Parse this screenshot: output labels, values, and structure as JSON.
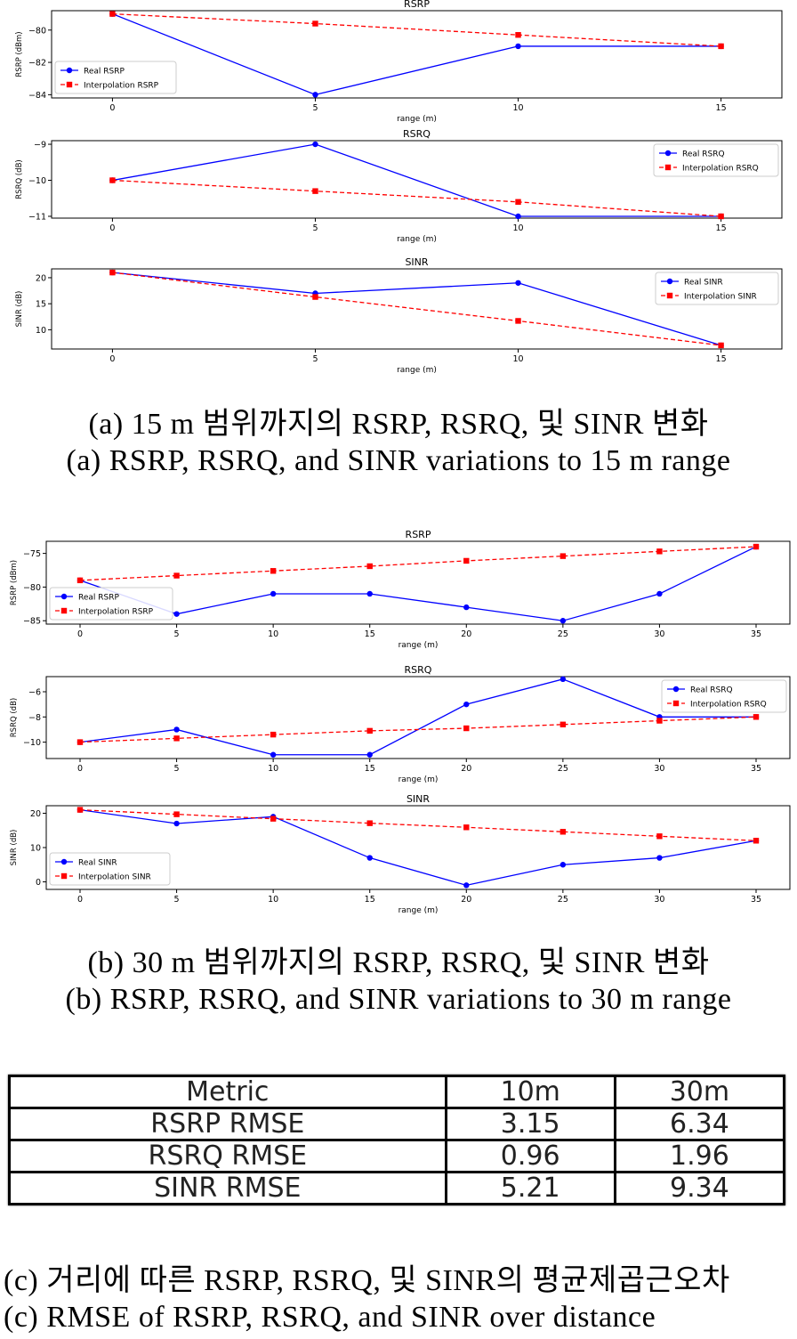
{
  "chart_data": [
    {
      "type": "line",
      "title": "RSRP",
      "xlabel": "range (m)",
      "ylabel": "RSRP (dBm)",
      "xlim": [
        -1.5,
        16.5
      ],
      "ylim": [
        -84.2,
        -78.8
      ],
      "xticks": [
        0,
        5,
        10,
        15
      ],
      "yticks": [
        -80,
        -82,
        -84
      ],
      "legend": "lower-left",
      "x": [
        0,
        5,
        10,
        15
      ],
      "series": [
        {
          "name": "Real RSRP",
          "color": "#0000ff",
          "style": "solid",
          "marker": "circle",
          "values": [
            -79,
            -84,
            -81,
            -81
          ]
        },
        {
          "name": "Interpolation RSRP",
          "color": "#ff0000",
          "style": "dashed",
          "marker": "square",
          "values": [
            -79,
            -79.6,
            -80.3,
            -81
          ]
        }
      ]
    },
    {
      "type": "line",
      "title": "RSRQ",
      "xlabel": "range (m)",
      "ylabel": "RSRQ (dB)",
      "xlim": [
        -1.5,
        16.5
      ],
      "ylim": [
        -11.05,
        -8.9
      ],
      "xticks": [
        0,
        5,
        10,
        15
      ],
      "yticks": [
        -9,
        -10,
        -11
      ],
      "legend": "upper-right",
      "x": [
        0,
        5,
        10,
        15
      ],
      "series": [
        {
          "name": "Real RSRQ",
          "color": "#0000ff",
          "style": "solid",
          "marker": "circle",
          "values": [
            -10,
            -9,
            -11,
            -11
          ]
        },
        {
          "name": "Interpolation RSRQ",
          "color": "#ff0000",
          "style": "dashed",
          "marker": "square",
          "values": [
            -10,
            -10.3,
            -10.6,
            -11
          ]
        }
      ]
    },
    {
      "type": "line",
      "title": "SINR",
      "xlabel": "range (m)",
      "ylabel": "SINR (dB)",
      "xlim": [
        -1.5,
        16.5
      ],
      "ylim": [
        6.3,
        21.7
      ],
      "xticks": [
        0,
        5,
        10,
        15
      ],
      "yticks": [
        20,
        15,
        10
      ],
      "legend": "upper-right",
      "x": [
        0,
        5,
        10,
        15
      ],
      "series": [
        {
          "name": "Real SINR",
          "color": "#0000ff",
          "style": "solid",
          "marker": "circle",
          "values": [
            21,
            17,
            19,
            7
          ]
        },
        {
          "name": "Interpolation SINR",
          "color": "#ff0000",
          "style": "dashed",
          "marker": "square",
          "values": [
            21,
            16.3,
            11.7,
            7
          ]
        }
      ]
    },
    {
      "type": "line",
      "title": "RSRP",
      "xlabel": "range (m)",
      "ylabel": "RSRP (dBm)",
      "xlim": [
        -1.75,
        36.75
      ],
      "ylim": [
        -85.5,
        -73.2
      ],
      "xticks": [
        0,
        5,
        10,
        15,
        20,
        25,
        30,
        35
      ],
      "yticks": [
        -75,
        -80,
        -85
      ],
      "legend": "lower-left",
      "x": [
        0,
        5,
        10,
        15,
        20,
        25,
        30,
        35
      ],
      "series": [
        {
          "name": "Real RSRP",
          "color": "#0000ff",
          "style": "solid",
          "marker": "circle",
          "values": [
            -79,
            -84,
            -81,
            -81,
            -83,
            -85,
            -81,
            -74
          ]
        },
        {
          "name": "Interpolation RSRP",
          "color": "#ff0000",
          "style": "dashed",
          "marker": "square",
          "values": [
            -79,
            -78.3,
            -77.6,
            -76.9,
            -76.1,
            -75.4,
            -74.7,
            -74
          ]
        }
      ]
    },
    {
      "type": "line",
      "title": "RSRQ",
      "xlabel": "range (m)",
      "ylabel": "RSRQ (dB)",
      "xlim": [
        -1.75,
        36.75
      ],
      "ylim": [
        -11.3,
        -4.8
      ],
      "xticks": [
        0,
        5,
        10,
        15,
        20,
        25,
        30,
        35
      ],
      "yticks": [
        -6,
        -8,
        -10
      ],
      "legend": "upper-right",
      "x": [
        0,
        5,
        10,
        15,
        20,
        25,
        30,
        35
      ],
      "series": [
        {
          "name": "Real RSRQ",
          "color": "#0000ff",
          "style": "solid",
          "marker": "circle",
          "values": [
            -10,
            -9,
            -11,
            -11,
            -7,
            -5,
            -8,
            -8
          ]
        },
        {
          "name": "Interpolation RSRQ",
          "color": "#ff0000",
          "style": "dashed",
          "marker": "square",
          "values": [
            -10,
            -9.7,
            -9.4,
            -9.1,
            -8.9,
            -8.6,
            -8.3,
            -8
          ]
        }
      ]
    },
    {
      "type": "line",
      "title": "SINR",
      "xlabel": "range (m)",
      "ylabel": "SINR (dB)",
      "xlim": [
        -1.75,
        36.75
      ],
      "ylim": [
        -2.2,
        22.2
      ],
      "xticks": [
        0,
        5,
        10,
        15,
        20,
        25,
        30,
        35
      ],
      "yticks": [
        20,
        10,
        0
      ],
      "legend": "lower-left",
      "x": [
        0,
        5,
        10,
        15,
        20,
        25,
        30,
        35
      ],
      "series": [
        {
          "name": "Real SINR",
          "color": "#0000ff",
          "style": "solid",
          "marker": "circle",
          "values": [
            21,
            17,
            19,
            7,
            -1,
            5,
            7,
            12
          ]
        },
        {
          "name": "Interpolation SINR",
          "color": "#ff0000",
          "style": "dashed",
          "marker": "square",
          "values": [
            21,
            19.7,
            18.4,
            17.1,
            15.9,
            14.6,
            13.3,
            12
          ]
        }
      ]
    },
    {
      "type": "table",
      "columns": [
        "Metric",
        "10m",
        "30m"
      ],
      "rows": [
        [
          "RSRP RMSE",
          "3.15",
          "6.34"
        ],
        [
          "RSRQ RMSE",
          "0.96",
          "1.96"
        ],
        [
          "SINR RMSE",
          "5.21",
          "9.34"
        ]
      ]
    }
  ],
  "captions": {
    "a_ko": "(a) 15 m 범위까지의 RSRP, RSRQ, 및 SINR 변화",
    "a_en": "(a) RSRP, RSRQ, and SINR variations to 15 m range",
    "b_ko": "(b) 30 m 범위까지의 RSRP, RSRQ, 및 SINR 변화",
    "b_en": "(b) RSRP, RSRQ, and SINR variations to 30 m range",
    "c_ko": "(c) 거리에 따른 RSRP, RSRQ, 및 SINR의 평균제곱근오차",
    "c_en": "(c) RMSE of RSRP, RSRQ, and SINR over distance"
  }
}
